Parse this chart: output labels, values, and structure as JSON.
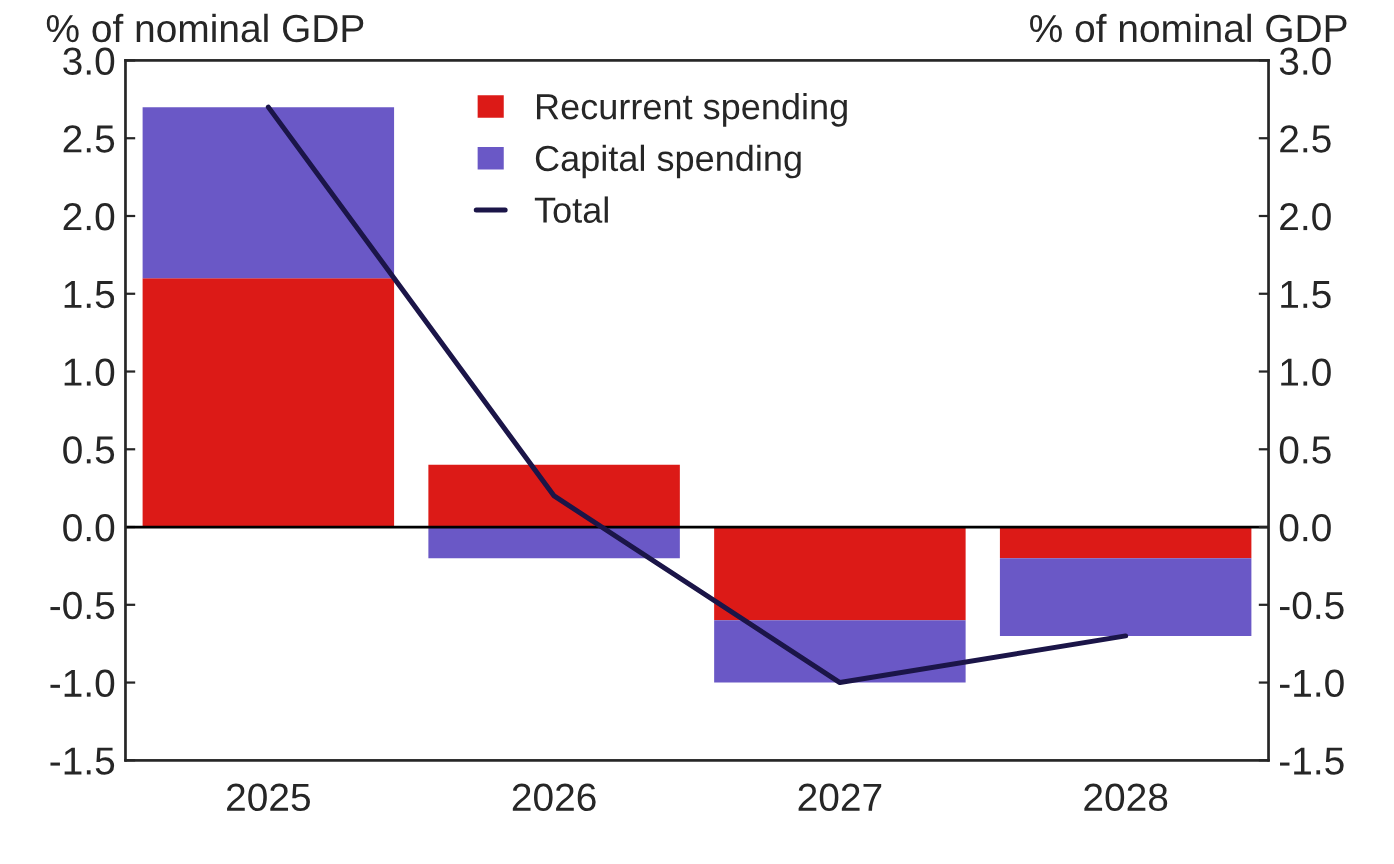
{
  "chart_data": {
    "type": "bar",
    "stacked": true,
    "ylabel": "% of nominal GDP",
    "y2label": "% of nominal GDP",
    "categories": [
      "2025",
      "2026",
      "2027",
      "2028"
    ],
    "series": [
      {
        "name": "Recurrent spending",
        "color": "#dc1a17",
        "values": [
          1.6,
          0.4,
          -0.6,
          -0.2
        ]
      },
      {
        "name": "Capital spending",
        "color": "#6a58c6",
        "values": [
          1.1,
          -0.2,
          -0.4,
          -0.5
        ]
      },
      {
        "name": "Total",
        "type": "line",
        "color": "#1b1548",
        "values": [
          2.7,
          0.2,
          -1.0,
          -0.7
        ]
      }
    ],
    "ylim": [
      -1.5,
      3.0
    ],
    "yticks": [
      {
        "value": -1.5,
        "label": "-1.5"
      },
      {
        "value": -1.0,
        "label": "-1.0"
      },
      {
        "value": -0.5,
        "label": "-0.5"
      },
      {
        "value": 0.0,
        "label": "0.0"
      },
      {
        "value": 0.5,
        "label": "0.5"
      },
      {
        "value": 1.0,
        "label": "1.0"
      },
      {
        "value": 1.5,
        "label": "1.5"
      },
      {
        "value": 2.0,
        "label": "2.0"
      },
      {
        "value": 2.5,
        "label": "2.5"
      },
      {
        "value": 3.0,
        "label": "3.0"
      }
    ],
    "y2lim": [
      -1.5,
      3.0
    ],
    "y2ticks": [
      {
        "value": -1.5,
        "label": "-1.5"
      },
      {
        "value": -1.0,
        "label": "-1.0"
      },
      {
        "value": -0.5,
        "label": "-0.5"
      },
      {
        "value": 0.0,
        "label": "0.0"
      },
      {
        "value": 0.5,
        "label": "0.5"
      },
      {
        "value": 1.0,
        "label": "1.0"
      },
      {
        "value": 1.5,
        "label": "1.5"
      },
      {
        "value": 2.0,
        "label": "2.0"
      },
      {
        "value": 2.5,
        "label": "2.5"
      },
      {
        "value": 3.0,
        "label": "3.0"
      }
    ],
    "ref_lines": [
      {
        "axis": "y",
        "value": 0.0,
        "color": "#000000"
      }
    ],
    "legend": "top",
    "line_style": "solid",
    "marker": "none"
  }
}
